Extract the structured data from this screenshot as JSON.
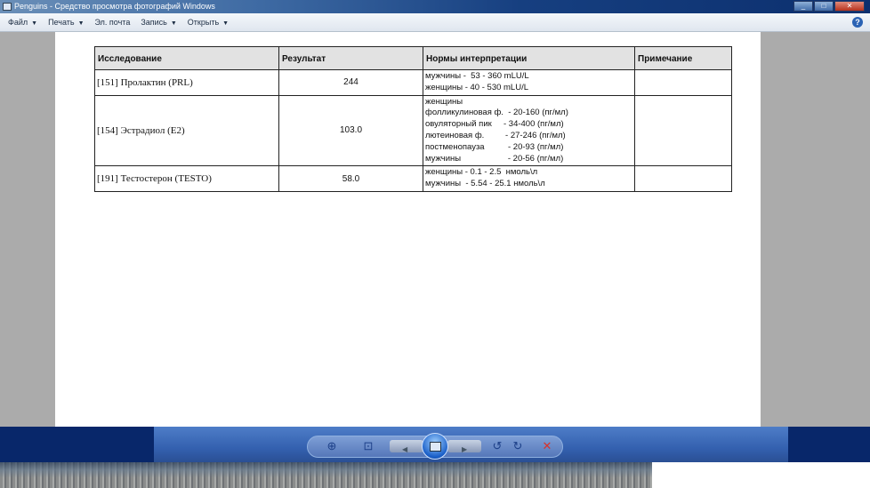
{
  "window": {
    "title": "Penguins - Средство просмотра фотографий Windows",
    "help": "?"
  },
  "menu": [
    {
      "label": "Файл",
      "caret": "▼"
    },
    {
      "label": "Печать",
      "caret": "▼"
    },
    {
      "label": "Эл. почта",
      "caret": ""
    },
    {
      "label": "Запись",
      "caret": "▼"
    },
    {
      "label": "Открыть",
      "caret": "▼"
    }
  ],
  "table": {
    "headers": [
      "Исследование",
      "Результат",
      "Нормы интерпретации",
      "Примечание"
    ],
    "rows": [
      {
        "test": "[151] Пролактин (PRL)",
        "result": "244",
        "norms": "мужчины -  53 - 360 mLU/L\nженщины - 40 - 530 mLU/L",
        "note": ""
      },
      {
        "test": "[154] Эстрадиол (E2)",
        "result": "103.0",
        "norms": "женщины\nфолликулиновая ф.  - 20-160 (пг/мл)\nовуляторный пик     - 34-400 (пг/мл)\nлютеиновая ф.         - 27-246 (пг/мл)\nпостменопауза          - 20-93 (пг/мл)\nмужчины                    - 20-56 (пг/мл)",
        "note": ""
      },
      {
        "test": "[191] Тестостерон (TESTO)",
        "result": "58.0",
        "norms": "женщины - 0.1 - 2.5  нмоль\\л\nмужчины  - 5.54 - 25.1 нмоль\\л",
        "note": ""
      }
    ]
  },
  "toolbar": {
    "icons": [
      "zoom-icon",
      "fit-window-icon",
      "previous-icon",
      "slideshow-icon",
      "next-icon",
      "rotate-left-icon",
      "rotate-right-icon",
      "delete-icon"
    ]
  }
}
